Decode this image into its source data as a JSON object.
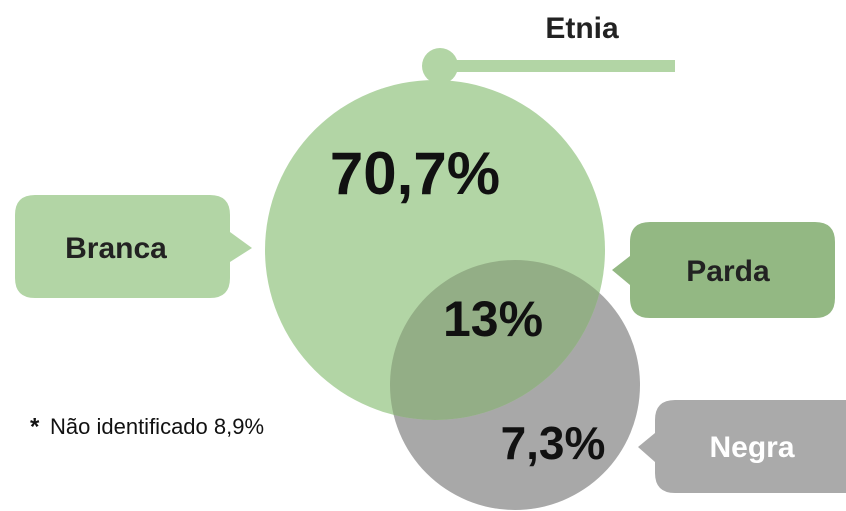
{
  "title": "Etnia",
  "groups": [
    {
      "label": "Branca",
      "value": "70,7%"
    },
    {
      "label": "Parda",
      "value": "13%"
    },
    {
      "label": "Negra",
      "value": "7,3%"
    }
  ],
  "footnote": {
    "marker": "*",
    "text": "Não identificado 8,9%"
  }
}
